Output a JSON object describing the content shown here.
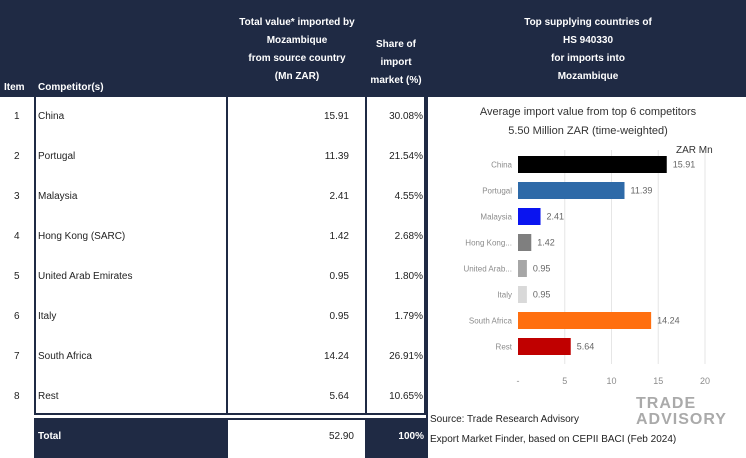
{
  "header": {
    "item": "Item",
    "competitor": "Competitor(s)",
    "value_lines": [
      "Total value* imported by",
      "Mozambique",
      "from source country",
      "(Mn ZAR)"
    ],
    "share_lines": [
      "Share of",
      "import",
      "market (%)"
    ],
    "top_lines": [
      "Top supplying countries of",
      "HS 940330",
      "for imports into",
      "Mozambique"
    ]
  },
  "rows": [
    {
      "item": "1",
      "competitor": "China",
      "value": "15.91",
      "share": "30.08%"
    },
    {
      "item": "2",
      "competitor": "Portugal",
      "value": "11.39",
      "share": "21.54%"
    },
    {
      "item": "3",
      "competitor": "Malaysia",
      "value": "2.41",
      "share": "4.55%"
    },
    {
      "item": "4",
      "competitor": "Hong Kong (SARC)",
      "value": "1.42",
      "share": "2.68%"
    },
    {
      "item": "5",
      "competitor": "United Arab Emirates",
      "value": "0.95",
      "share": "1.80%"
    },
    {
      "item": "6",
      "competitor": "Italy",
      "value": "0.95",
      "share": "1.79%"
    },
    {
      "item": "7",
      "competitor": "South Africa",
      "value": "14.24",
      "share": "26.91%"
    },
    {
      "item": "8",
      "competitor": "Rest",
      "value": "5.64",
      "share": "10.65%"
    }
  ],
  "total": {
    "label": "Total",
    "value": "52.90",
    "share": "100%"
  },
  "chart_data": {
    "type": "bar",
    "orientation": "horizontal",
    "title": "Average import value from top 6 competitors",
    "subtitle": "5.50 Million ZAR (time-weighted)",
    "unit_label": "ZAR Mn",
    "categories": [
      "China",
      "Portugal",
      "Malaysia",
      "Hong Kong...",
      "United Arab...",
      "Italy",
      "South Africa",
      "Rest"
    ],
    "values": [
      15.91,
      11.39,
      2.41,
      1.42,
      0.95,
      0.95,
      14.24,
      5.64
    ],
    "value_labels": [
      "15.91",
      "11.39",
      "2.41",
      "1.42",
      "0.95",
      "0.95",
      "14.24",
      "5.64"
    ],
    "colors": [
      "#000000",
      "#2e6aa8",
      "#0a14f0",
      "#7f7f7f",
      "#a6a6a6",
      "#d9d9d9",
      "#ff6f0f",
      "#c00000"
    ],
    "xticks": [
      "-",
      "5",
      "10",
      "15",
      "20"
    ],
    "xlim": [
      0,
      20
    ],
    "grid": true
  },
  "source": {
    "line1": "Source: Trade Research Advisory",
    "line2": "Export Market Finder, based on CEPII BACI (Feb 2024)"
  },
  "logo": {
    "line1": "TRADE",
    "line2": "ADVISORY"
  }
}
